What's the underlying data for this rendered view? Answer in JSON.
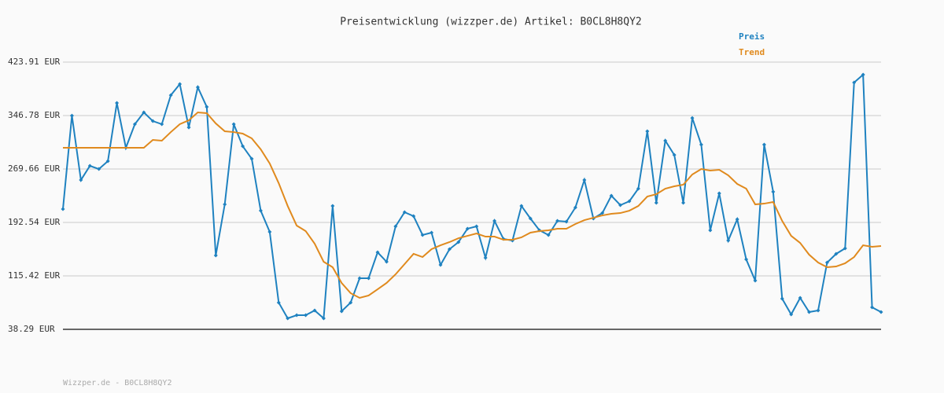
{
  "chart_data": {
    "type": "line",
    "title": "Preisentwicklung (wizzper.de) Artikel: B0CL8H8QY2",
    "footer": "Wizzper.de - B0CL8H8QY2",
    "ylim": [
      38.29,
      423.91
    ],
    "yticks": [
      {
        "value": 38.29,
        "label": "38.29 EUR"
      },
      {
        "value": 115.42,
        "label": "115.42 EUR"
      },
      {
        "value": 192.54,
        "label": "192.54 EUR"
      },
      {
        "value": 269.66,
        "label": "269.66 EUR"
      },
      {
        "value": 346.78,
        "label": "346.78 EUR"
      },
      {
        "value": 423.91,
        "label": "423.91 EUR"
      }
    ],
    "grid": true,
    "series": [
      {
        "name": "Preis",
        "color": "#1f82c0",
        "markers": true,
        "values": [
          211.8,
          346.7,
          253.8,
          274.2,
          269.6,
          281.0,
          364.9,
          300.3,
          334.3,
          351.3,
          338.8,
          334.3,
          376.2,
          392.1,
          329.7,
          387.6,
          359.2,
          144.9,
          218.6,
          334.3,
          302.5,
          284.4,
          209.5,
          178.9,
          76.9,
          54.2,
          58.7,
          58.7,
          65.5,
          54.2,
          216.3,
          64.4,
          76.9,
          112.0,
          112.0,
          149.4,
          135.8,
          186.9,
          207.3,
          201.6,
          174.4,
          177.8,
          131.3,
          154.0,
          164.2,
          183.5,
          186.9,
          141.5,
          194.8,
          168.7,
          166.4,
          216.3,
          198.2,
          181.2,
          174.4,
          194.8,
          193.7,
          214.1,
          253.8,
          198.2,
          206.1,
          231.1,
          217.5,
          223.1,
          241.3,
          324.1,
          220.9,
          310.5,
          290.0,
          220.9,
          343.3,
          304.8,
          181.2,
          234.5,
          166.4,
          197.1,
          139.2,
          108.6,
          304.8,
          236.8,
          82.5,
          59.8,
          83.7,
          63.2,
          65.5,
          134.7,
          147.2,
          155.1,
          394.4,
          405.7,
          70.1,
          63.2
        ]
      },
      {
        "name": "Trend",
        "color": "#e08a1e",
        "markers": false,
        "values": [
          300.3,
          300.3,
          300.3,
          300.3,
          300.3,
          300.3,
          300.3,
          300.3,
          300.3,
          300.3,
          311.6,
          310.5,
          322.9,
          334.3,
          339.9,
          351.3,
          350.2,
          335.4,
          324.1,
          322.9,
          320.7,
          313.9,
          298.0,
          277.6,
          249.2,
          216.3,
          188.0,
          180.1,
          161.9,
          135.8,
          127.9,
          105.2,
          90.5,
          83.7,
          87.1,
          96.1,
          105.2,
          117.7,
          132.4,
          147.2,
          142.6,
          154.0,
          159.6,
          164.2,
          169.8,
          173.2,
          176.6,
          172.1,
          172.1,
          167.6,
          167.6,
          171.0,
          177.8,
          180.1,
          181.2,
          183.5,
          183.5,
          190.3,
          195.9,
          199.3,
          202.7,
          205.0,
          206.1,
          209.5,
          216.3,
          229.9,
          233.3,
          241.3,
          244.7,
          247.0,
          261.7,
          269.6,
          267.4,
          268.5,
          260.6,
          248.1,
          241.3,
          218.6,
          219.7,
          222.0,
          194.8,
          173.2,
          163.0,
          146.0,
          134.7,
          127.9,
          129.0,
          133.6,
          142.6,
          159.6,
          157.4,
          158.5
        ]
      }
    ]
  }
}
